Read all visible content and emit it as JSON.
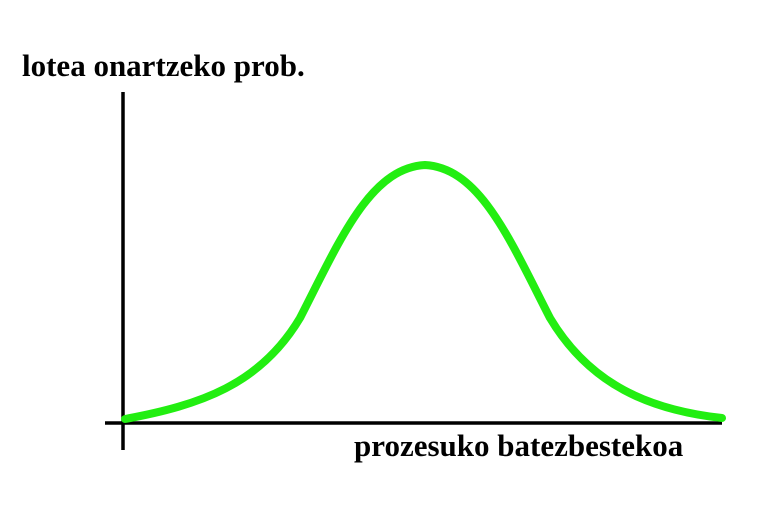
{
  "diagram": {
    "y_axis_label": "lotea onartzeko prob.",
    "x_axis_label": "prozesuko batezbestekoa",
    "curve_shape": "bell",
    "colors": {
      "curve": "#22ee11",
      "axes": "#000000"
    }
  }
}
